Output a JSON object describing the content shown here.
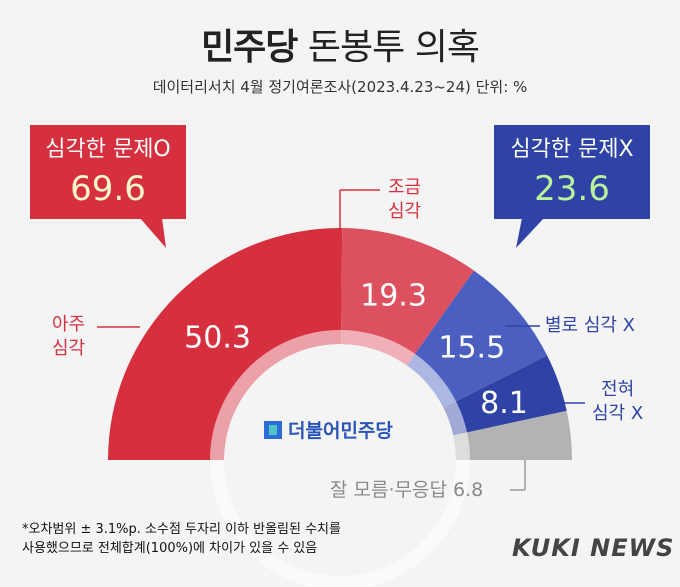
{
  "header": {
    "title_bold": "민주당",
    "title_rest": "돈봉투 의혹",
    "subtitle": "데이터리서치 4월 정기여론조사(2023.4.23~24) 단위: %"
  },
  "callouts": {
    "serious": {
      "label": "심각한 문제O",
      "value": "69.6"
    },
    "not_serious": {
      "label": "심각한 문제X",
      "value": "23.6"
    }
  },
  "labels": {
    "very_serious": [
      "아주",
      "심각"
    ],
    "somewhat_serious": [
      "조금",
      "심각"
    ],
    "not_very": "별로 심각 X",
    "not_at_all": [
      "전혀",
      "심각 X"
    ],
    "dont_know": "잘 모름·무응답 6.8"
  },
  "logo_text": "더불어민주당",
  "footnote": {
    "line1": "*오차범위 ± 3.1%p. 소수점 두자리 이하 반올림된 수치를",
    "line2": "사용했으므로 전체합계(100%)에 차이가 있을 수 있음"
  },
  "brand": "KUKI NEWS",
  "chart_data": {
    "type": "pie",
    "subtype": "semicircle-donut",
    "unit": "%",
    "slices": [
      {
        "name": "아주 심각",
        "value": 50.3,
        "color": "#d6303f"
      },
      {
        "name": "조금 심각",
        "value": 19.3,
        "color": "#dc5060"
      },
      {
        "name": "별로 심각 X",
        "value": 15.5,
        "color": "#4a5fc0"
      },
      {
        "name": "전혀 심각 X",
        "value": 8.1,
        "color": "#2f43a6"
      },
      {
        "name": "잘 모름·무응답",
        "value": 6.8,
        "color": "#b3b3b3"
      }
    ],
    "groups": [
      {
        "name": "심각한 문제O",
        "value": 69.6
      },
      {
        "name": "심각한 문제X",
        "value": 23.6
      }
    ]
  },
  "colors": {
    "red": "#d6303f",
    "blue": "#2f43a6",
    "gray": "#b3b3b3",
    "red_label": "#d6303f",
    "blue_label": "#2f43a6"
  }
}
